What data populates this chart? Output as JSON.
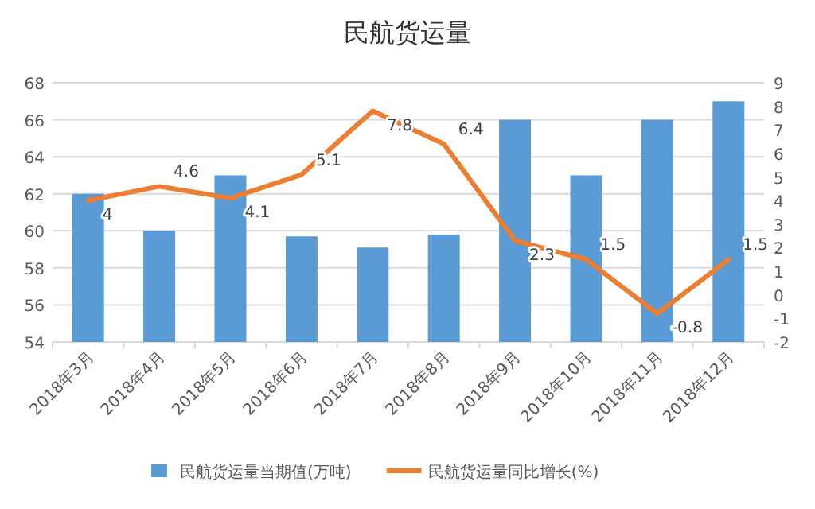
{
  "chart_data": {
    "type": "bar",
    "title": "民航货运量",
    "categories": [
      "2018年3月",
      "2018年4月",
      "2018年5月",
      "2018年6月",
      "2018年7月",
      "2018年8月",
      "2018年9月",
      "2018年10月",
      "2018年11月",
      "2018年12月"
    ],
    "series": [
      {
        "name": "民航货运量当期值(万吨)",
        "color": "#5b9bd5",
        "values": [
          62,
          60,
          63,
          59.7,
          59.1,
          59.8,
          66,
          63,
          66,
          67
        ]
      },
      {
        "type": "line",
        "name": "民航货运量同比增长(%)",
        "color": "#ed7d31",
        "axis": "y2",
        "values": [
          4,
          4.6,
          4.1,
          5.1,
          7.8,
          6.4,
          2.3,
          1.5,
          -0.8,
          1.5
        ],
        "value_labels": [
          "4",
          "4.6",
          "4.1",
          "5.1",
          "7.8",
          "6.4",
          "2.3",
          "1.5",
          "-0.8",
          "1.5"
        ]
      }
    ],
    "ylim": [
      54,
      68
    ],
    "yticks": [
      54,
      56,
      58,
      60,
      62,
      64,
      66,
      68
    ],
    "y2lim": [
      -2,
      9
    ],
    "y2ticks": [
      -2,
      -1,
      0,
      1,
      2,
      3,
      4,
      5,
      6,
      7,
      8,
      9
    ],
    "grid": "y",
    "legend": "bottom"
  }
}
